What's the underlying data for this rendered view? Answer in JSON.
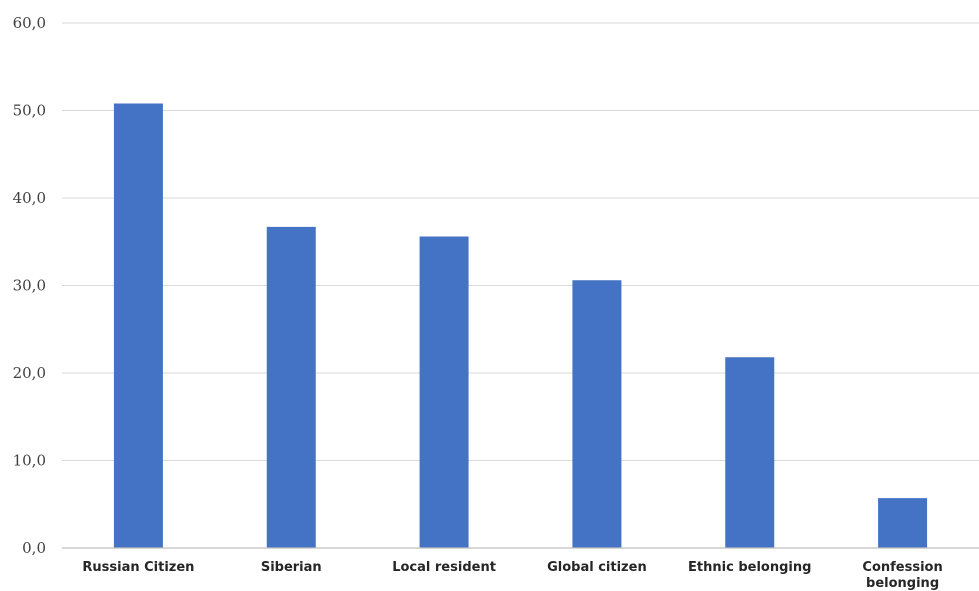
{
  "chart_data": {
    "type": "bar",
    "title": "",
    "xlabel": "",
    "ylabel": "",
    "categories": [
      [
        "Russian Citizen"
      ],
      [
        "Siberian"
      ],
      [
        "Local resident"
      ],
      [
        "Global citizen"
      ],
      [
        "Ethnic belonging"
      ],
      [
        "Confession",
        "belonging"
      ]
    ],
    "values": [
      50.8,
      36.7,
      35.6,
      30.6,
      21.8,
      5.7
    ],
    "ylim": [
      0,
      60
    ],
    "yticks": [
      "0,0",
      "10,0",
      "20,0",
      "30,0",
      "40,0",
      "50,0",
      "60,0"
    ],
    "grid": true,
    "legend": "none",
    "bar_color": "#4472C4"
  }
}
